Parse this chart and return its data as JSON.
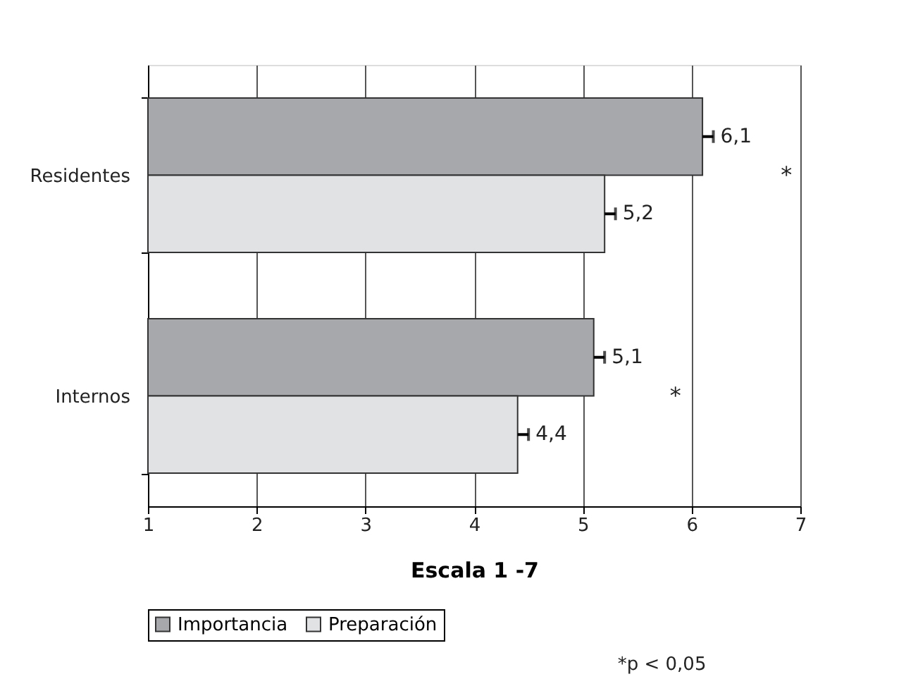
{
  "chart_data": {
    "type": "bar",
    "orientation": "horizontal",
    "xlabel": "Escala 1 -7",
    "categories": [
      "Residentes",
      "Internos"
    ],
    "series": [
      {
        "name": "Importancia",
        "color": "#a7a8ab",
        "values": [
          6.1,
          5.1
        ],
        "errors": [
          0.1,
          0.1
        ],
        "value_labels": [
          "6,1",
          "5,1"
        ]
      },
      {
        "name": "Preparación",
        "color": "#e1e2e4",
        "values": [
          5.2,
          4.4
        ],
        "errors": [
          0.1,
          0.1
        ],
        "value_labels": [
          "5,2",
          "4,4"
        ]
      }
    ],
    "xlim": [
      1,
      7
    ],
    "xticks": [
      1,
      2,
      3,
      4,
      5,
      6,
      7
    ],
    "grid": "x",
    "legend": "bottom",
    "annotations": [
      "*",
      "*",
      "*p < 0,05"
    ]
  }
}
